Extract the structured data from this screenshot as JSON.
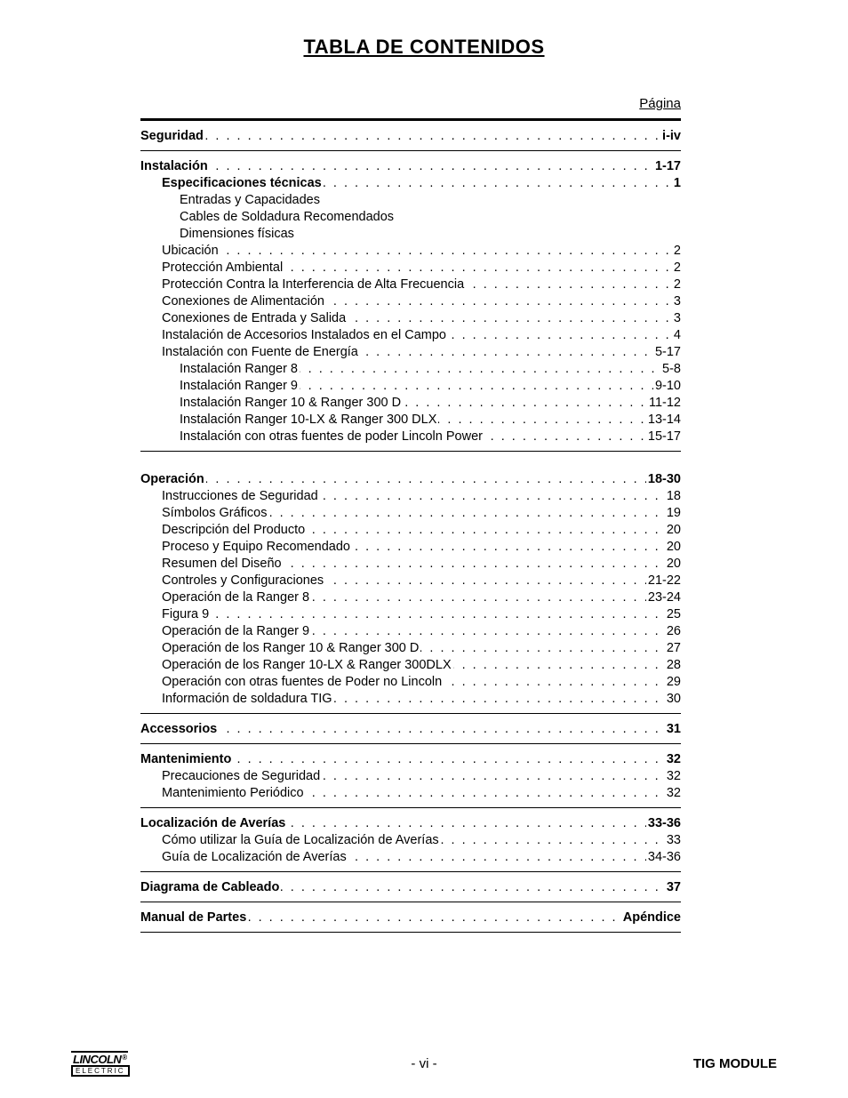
{
  "title": "TABLA DE CONTENIDOS",
  "page_label": "Página",
  "dot_fill": ". . . . . . . . . . . . . . . . . . . . . . . . . . . . . . . . . . . . . . . . . . . . . . . . . . . . . . . . . . . . . . . . . . . . . . . . . . . . . . . . . . . . . . . . . . . . . . . . . . . . . . . . . . . . . . . . . . . . . . . . . . . . . . . .",
  "sections": [
    {
      "top_rule": "thick",
      "bottom_rule": "thin",
      "rows": [
        {
          "type": "leader",
          "bold": true,
          "indent": 0,
          "label": "Seguridad",
          "page": "i-iv"
        }
      ]
    },
    {
      "bottom_rule": "thin",
      "rows": [
        {
          "type": "leader",
          "bold": true,
          "indent": 0,
          "label": "Instalación",
          "page": "1-17"
        },
        {
          "type": "leader",
          "bold": true,
          "indent": 1,
          "label": "Especificaciones técnicas",
          "page": "1"
        },
        {
          "type": "plain",
          "indent": 2,
          "label": "Entradas y Capacidades"
        },
        {
          "type": "plain",
          "indent": 2,
          "label": "Cables de Soldadura Recomendados"
        },
        {
          "type": "plain",
          "indent": 2,
          "label": "Dimensiones físicas"
        },
        {
          "type": "leader",
          "bold": false,
          "indent": 1,
          "label": "Ubicación",
          "page": "2"
        },
        {
          "type": "leader",
          "bold": false,
          "indent": 1,
          "label": "Protección Ambiental",
          "page": "2"
        },
        {
          "type": "leader",
          "bold": false,
          "indent": 1,
          "label": "Protección Contra la Interferencia de Alta Frecuencia",
          "page": "2"
        },
        {
          "type": "leader",
          "bold": false,
          "indent": 1,
          "label": "Conexiones de Alimentación ",
          "page": "3"
        },
        {
          "type": "leader",
          "bold": false,
          "indent": 1,
          "label": "Conexiones de Entrada y Salida",
          "page": "3"
        },
        {
          "type": "leader",
          "bold": false,
          "indent": 1,
          "label": "Instalación de Accesorios Instalados en el Campo",
          "page": "4"
        },
        {
          "type": "leader",
          "bold": false,
          "indent": 1,
          "label": "Instalación con Fuente de Energía",
          "page": "5-17"
        },
        {
          "type": "leader",
          "bold": false,
          "indent": 2,
          "label": "Instalación Ranger 8",
          "page": "5-8"
        },
        {
          "type": "leader",
          "bold": false,
          "indent": 2,
          "label": "Instalación Ranger 9",
          "page": "9-10"
        },
        {
          "type": "leader",
          "bold": false,
          "indent": 2,
          "label": "Instalación Ranger 10 & Ranger 300 D",
          "page": "11-12"
        },
        {
          "type": "leader",
          "bold": false,
          "indent": 2,
          "label": "Instalación Ranger 10-LX & Ranger 300 DLX",
          "page": "13-14"
        },
        {
          "type": "leader",
          "bold": false,
          "indent": 2,
          "label": "Instalación  con otras fuentes de poder Lincoln Power",
          "page": "15-17"
        }
      ]
    },
    {
      "pad_top": 22,
      "bottom_rule": "thin",
      "rows": [
        {
          "type": "leader",
          "bold": true,
          "indent": 0,
          "label": "Operación",
          "page": "18-30"
        },
        {
          "type": "leader",
          "bold": false,
          "indent": 1,
          "label": "Instrucciones de Seguridad",
          "page": "18"
        },
        {
          "type": "leader",
          "bold": false,
          "indent": 1,
          "label": "Símbolos Gráficos",
          "page": "19"
        },
        {
          "type": "leader",
          "bold": false,
          "indent": 1,
          "label": "Descripción del Producto",
          "page": "20"
        },
        {
          "type": "leader",
          "bold": false,
          "indent": 1,
          "label": "Proceso y Equipo Recomendado",
          "page": "20"
        },
        {
          "type": "leader",
          "bold": false,
          "indent": 1,
          "label": "Resumen del Diseño",
          "page": "20"
        },
        {
          "type": "leader",
          "bold": false,
          "indent": 1,
          "label": "Controles y Configuraciones",
          "page": "21-22"
        },
        {
          "type": "leader",
          "bold": false,
          "indent": 1,
          "label": "Operación de la Ranger 8",
          "page": "23-24"
        },
        {
          "type": "leader",
          "bold": false,
          "indent": 1,
          "label": "Figura 9",
          "page": "25"
        },
        {
          "type": "leader",
          "bold": false,
          "indent": 1,
          "label": "Operación de la Ranger 9",
          "page": "26"
        },
        {
          "type": "leader",
          "bold": false,
          "indent": 1,
          "label": "Operación de los Ranger 10 & Ranger 300 D",
          "page": "27"
        },
        {
          "type": "leader",
          "bold": false,
          "indent": 1,
          "label": "Operación de los Ranger 10-LX & Ranger 300DLX",
          "page": "28"
        },
        {
          "type": "leader",
          "bold": false,
          "indent": 1,
          "label": "Operación con otras fuentes de Poder no Lincoln",
          "page": "29"
        },
        {
          "type": "leader",
          "bold": false,
          "indent": 1,
          "label": "Información de soldadura TIG",
          "page": "30"
        }
      ]
    },
    {
      "bottom_rule": "thin",
      "rows": [
        {
          "type": "leader",
          "bold": true,
          "indent": 0,
          "label": "Accessorios",
          "page": "31"
        }
      ]
    },
    {
      "bottom_rule": "thin",
      "rows": [
        {
          "type": "leader",
          "bold": true,
          "indent": 0,
          "label": "Mantenimiento",
          "page": "32"
        },
        {
          "type": "leader",
          "bold": false,
          "indent": 1,
          "label": "Precauciones de Seguridad",
          "page": "32"
        },
        {
          "type": "leader",
          "bold": false,
          "indent": 1,
          "label": "Mantenimiento Periódico",
          "page": "32"
        }
      ]
    },
    {
      "bottom_rule": "thin",
      "rows": [
        {
          "type": "leader",
          "bold": true,
          "indent": 0,
          "label": "Localización de Averías",
          "page": "33-36"
        },
        {
          "type": "leader",
          "bold": false,
          "indent": 1,
          "label": "Cómo utilizar la Guía de Localización de Averías",
          "page": "33"
        },
        {
          "type": "leader",
          "bold": false,
          "indent": 1,
          "label": "Guía de Localización de Averías",
          "page": "34-36"
        }
      ]
    },
    {
      "bottom_rule": "thin",
      "rows": [
        {
          "type": "leader",
          "bold": true,
          "indent": 0,
          "label": "Diagrama de Cableado",
          "page": "37"
        }
      ]
    },
    {
      "bottom_rule": "thin",
      "rows": [
        {
          "type": "leader",
          "bold": true,
          "indent": 0,
          "label": "Manual de Partes",
          "page": "Apéndice"
        }
      ]
    }
  ],
  "footer": {
    "logo_top": "LINCOLN",
    "logo_reg": "®",
    "logo_bottom": "ELECTRIC",
    "center": "- vi -",
    "right": "TIG MODULE"
  }
}
